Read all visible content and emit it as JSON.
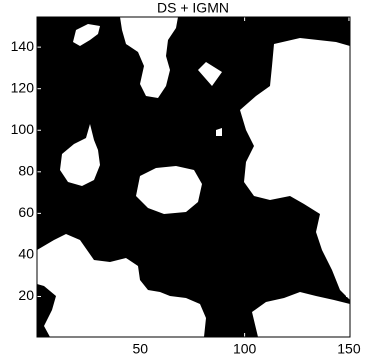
{
  "chart_data": {
    "type": "image",
    "title": "DS + IGMN",
    "xlim": [
      0.5,
      150.5
    ],
    "xticks": [
      50,
      100,
      150
    ],
    "ylim": [
      0.5,
      154.5
    ],
    "yticks": [
      20,
      40,
      60,
      80,
      100,
      120,
      140
    ]
  }
}
